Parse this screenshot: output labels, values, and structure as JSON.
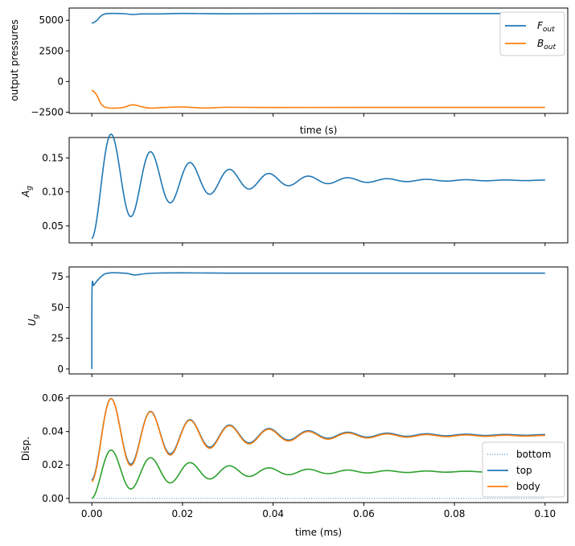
{
  "chart_data": [
    {
      "type": "line",
      "xlabel": "time (s)",
      "ylabel": "output pressures",
      "xlim": [
        -0.005,
        0.105
      ],
      "ylim": [
        -2600,
        6000
      ],
      "yticks": [
        -2500,
        0,
        2500,
        5000
      ],
      "ytick_labels": [
        "−2500",
        "0",
        "2500",
        "5000"
      ],
      "xticks": [
        0,
        0.02,
        0.04,
        0.06,
        0.08,
        0.1
      ],
      "legend_position": "top-right",
      "series": [
        {
          "name": "F",
          "name_sub": "out",
          "color": "#1f77b4",
          "x": [
            0,
            0.001,
            0.002,
            0.003,
            0.005,
            0.007,
            0.009,
            0.011,
            0.015,
            0.02,
            0.03,
            0.05,
            0.08,
            0.1
          ],
          "y": [
            4750,
            4950,
            5350,
            5530,
            5560,
            5540,
            5470,
            5520,
            5520,
            5560,
            5530,
            5560,
            5550,
            5550
          ]
        },
        {
          "name": "B",
          "name_sub": "out",
          "color": "#ff7f0e",
          "x": [
            0,
            0.001,
            0.002,
            0.003,
            0.005,
            0.007,
            0.009,
            0.011,
            0.013,
            0.016,
            0.02,
            0.025,
            0.03,
            0.04,
            0.06,
            0.1
          ],
          "y": [
            -700,
            -1050,
            -1800,
            -2100,
            -2180,
            -2110,
            -1900,
            -2060,
            -2170,
            -2120,
            -2080,
            -2160,
            -2100,
            -2120,
            -2110,
            -2110
          ]
        }
      ]
    },
    {
      "type": "line",
      "ylabel_main": "A",
      "ylabel_sub": "g",
      "xlim": [
        -0.005,
        0.105
      ],
      "ylim": [
        0.025,
        0.18
      ],
      "yticks": [
        0.05,
        0.1,
        0.15
      ],
      "ytick_labels": [
        "0.05",
        "0.10",
        "0.15"
      ],
      "xticks": [
        0,
        0.02,
        0.04,
        0.06,
        0.08,
        0.1
      ],
      "series": [
        {
          "name": "",
          "color": "#1f77b4",
          "kind": "damped",
          "y0": 0.031,
          "final": 0.117,
          "amplitude": 0.086,
          "decay": 55,
          "period": 0.0087
        }
      ]
    },
    {
      "type": "line",
      "ylabel_main": "U",
      "ylabel_sub": "g",
      "xlim": [
        -0.005,
        0.105
      ],
      "ylim": [
        -4,
        83
      ],
      "yticks": [
        0,
        25,
        50,
        75
      ],
      "ytick_labels": [
        "0",
        "25",
        "50",
        "75"
      ],
      "xticks": [
        0,
        0.02,
        0.04,
        0.06,
        0.08,
        0.1
      ],
      "series": [
        {
          "name": "",
          "color": "#1f77b4",
          "x": [
            0,
            5e-05,
            0.0004,
            0.001,
            0.002,
            0.003,
            0.0045,
            0.006,
            0.008,
            0.0095,
            0.012,
            0.015,
            0.02,
            0.03,
            0.05,
            0.1
          ],
          "y": [
            0,
            66,
            68,
            71,
            75,
            77.5,
            78.3,
            78.2,
            77.6,
            76.5,
            77.6,
            78.1,
            78.2,
            78.0,
            78.0,
            78.0
          ]
        }
      ]
    },
    {
      "type": "line",
      "xlabel": "time (ms)",
      "ylabel": "Disp.",
      "xlim": [
        -0.005,
        0.105
      ],
      "ylim": [
        -0.0025,
        0.0615
      ],
      "yticks": [
        0,
        0.02,
        0.04,
        0.06
      ],
      "ytick_labels": [
        "0.00",
        "0.02",
        "0.04",
        "0.06"
      ],
      "xticks": [
        0,
        0.02,
        0.04,
        0.06,
        0.08,
        0.1
      ],
      "xtick_labels": [
        "0.00",
        "0.02",
        "0.04",
        "0.06",
        "0.08",
        "0.10"
      ],
      "legend_position": "lower-right",
      "series": [
        {
          "name": "bottom",
          "color": "#2ca02c",
          "kind": "damped",
          "y0": 0.0,
          "final": 0.016,
          "amplitude": 0.016,
          "decay": 50,
          "period": 0.0087
        },
        {
          "name": "top",
          "color": "#1f77b4",
          "kind": "damped",
          "y0": 0.011,
          "final": 0.038,
          "amplitude": 0.027,
          "decay": 50,
          "period": 0.0087
        },
        {
          "name": "body",
          "color": "#ff7f0e",
          "kind": "damped",
          "y0": 0.01,
          "final": 0.0375,
          "amplitude": 0.0275,
          "decay": 50,
          "period": 0.0087
        }
      ],
      "reference_line": {
        "y": 0,
        "color": "#1f77b4",
        "style": "dotted"
      }
    }
  ]
}
